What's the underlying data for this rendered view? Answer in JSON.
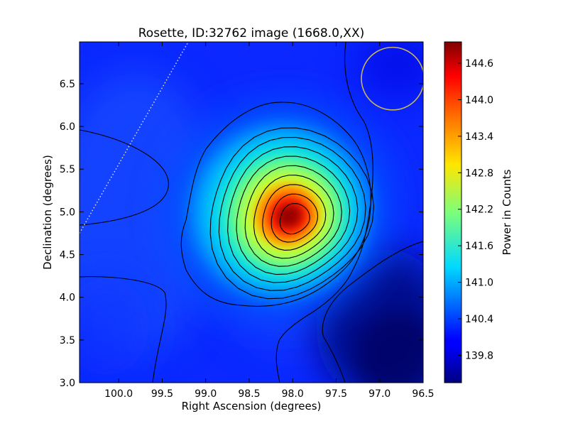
{
  "chart_data": {
    "type": "heatmap",
    "title": "Rosette, ID:32762 image (1668.0,XX)",
    "xlabel": "Right Ascension (degrees)",
    "ylabel": "Declination (degrees)",
    "xlim": [
      100.45,
      96.5
    ],
    "ylim": [
      3.0,
      6.99
    ],
    "x_ticks": [
      100.0,
      99.5,
      99.0,
      98.5,
      98.0,
      97.5,
      97.0,
      96.5
    ],
    "x_tick_labels": [
      "100.0",
      "99.5",
      "99.0",
      "98.5",
      "98.0",
      "97.5",
      "97.0",
      "96.5"
    ],
    "y_ticks": [
      3.0,
      3.5,
      4.0,
      4.5,
      5.0,
      5.5,
      6.0,
      6.5
    ],
    "y_tick_labels": [
      "3.0",
      "3.5",
      "4.0",
      "4.5",
      "5.0",
      "5.5",
      "6.0",
      "6.5"
    ],
    "grid": false,
    "colormap": "jet",
    "colorbar": {
      "label": "Power in Counts",
      "range": [
        139.35,
        144.95
      ],
      "ticks": [
        139.8,
        140.4,
        141.0,
        141.6,
        142.2,
        142.8,
        143.4,
        144.0,
        144.6
      ],
      "tick_labels": [
        "139.8",
        "140.4",
        "141.0",
        "141.6",
        "142.2",
        "142.8",
        "143.4",
        "144.0",
        "144.6"
      ]
    },
    "field": {
      "background": 140.05,
      "peak": {
        "ra": 97.98,
        "dec": 4.92,
        "value": 144.9
      },
      "dark_region": {
        "ra": 96.8,
        "dec": 3.65,
        "value": 139.4
      }
    },
    "contour_count": 14,
    "beam_circle": {
      "ra": 96.85,
      "dec": 6.56,
      "radius_deg": 0.36,
      "color": "#c8b45a"
    },
    "dotted_line": {
      "from": {
        "ra": 100.45,
        "dec": 4.75
      },
      "to": {
        "ra": 99.2,
        "dec": 6.99
      },
      "color": "#dddddd"
    }
  }
}
